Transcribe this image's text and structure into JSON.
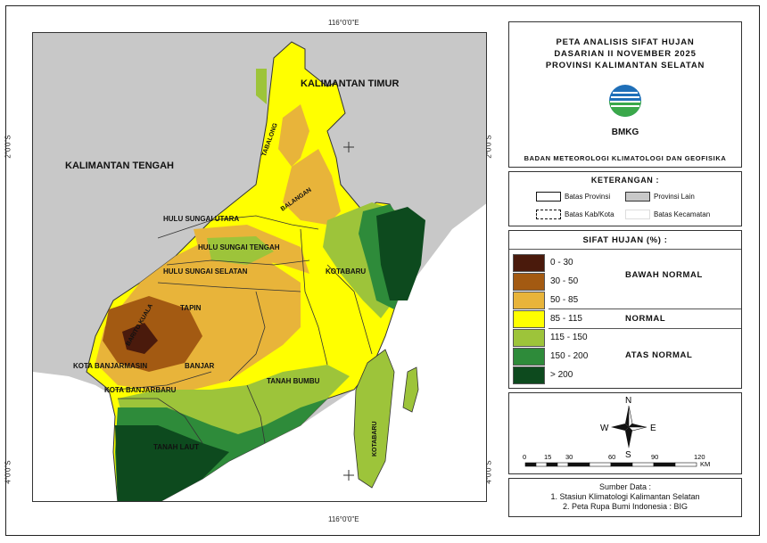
{
  "coords": {
    "top_lon": "116°0'0\"E",
    "bottom_lon": "116°0'0\"E",
    "lat_top": "2°0'0\"S",
    "lat_bottom": "4°0'0\"S"
  },
  "title": {
    "line1": "PETA ANALISIS SIFAT HUJAN",
    "line2": "DASARIAN II NOVEMBER 2025",
    "line3": "PROVINSI KALIMANTAN SELATAN",
    "logo_text": "BMKG",
    "agency": "BADAN METEOROLOGI KLIMATOLOGI DAN GEOFISIKA"
  },
  "keterangan": {
    "heading": "KETERANGAN :",
    "batas_provinsi": "Batas Provinsi",
    "provinsi_lain": "Provinsi Lain",
    "batas_kab": "Batas Kab/Kota",
    "batas_kec": "Batas Kecamatan"
  },
  "sifat_hujan": {
    "heading": "SIFAT HUJAN (%) :",
    "classes": [
      {
        "label": "0 - 30",
        "color": "#4a1a0c"
      },
      {
        "label": "30 - 50",
        "color": "#a35a12"
      },
      {
        "label": "50 - 85",
        "color": "#e8b43a"
      },
      {
        "label": "85 - 115",
        "color": "#ffff00"
      },
      {
        "label": "115 - 150",
        "color": "#9dc43a"
      },
      {
        "label": "150 - 200",
        "color": "#2e8b3a"
      },
      {
        "label": "> 200",
        "color": "#0d4a1e"
      }
    ],
    "categories": {
      "below": "BAWAH NORMAL",
      "normal": "NORMAL",
      "above": "ATAS NORMAL"
    }
  },
  "compass": {
    "n": "N",
    "s": "S",
    "e": "E",
    "w": "W"
  },
  "scale": {
    "ticks": [
      "0",
      "15",
      "30",
      "60",
      "90",
      "120"
    ],
    "unit": "KM"
  },
  "source": {
    "heading": "Sumber Data :",
    "line1": "1. Stasiun Klimatologi Kalimantan Selatan",
    "line2": "2. Peta Rupa Bumi Indonesia : BIG"
  },
  "map_labels": {
    "kalimantan_timur": "KALIMANTAN TIMUR",
    "kalimantan_tengah": "KALIMANTAN TENGAH",
    "tabalong": "TABALONG",
    "balangan": "BALANGAN",
    "hulu_sungai_utara": "HULU SUNGAI UTARA",
    "hulu_sungai_tengah": "HULU SUNGAI TENGAH",
    "hulu_sungai_selatan": "HULU SUNGAI SELATAN",
    "tapin": "TAPIN",
    "barito_kuala": "BARITO KUALA",
    "kota_banjarmasin": "KOTA BANJARMASIN",
    "banjar": "BANJAR",
    "kota_banjarbaru": "KOTA BANJARBARU",
    "tanah_laut": "TANAH LAUT",
    "tanah_bumbu": "TANAH BUMBU",
    "kotabaru_1": "KOTABARU",
    "kotabaru_2": "KOTABARU"
  }
}
